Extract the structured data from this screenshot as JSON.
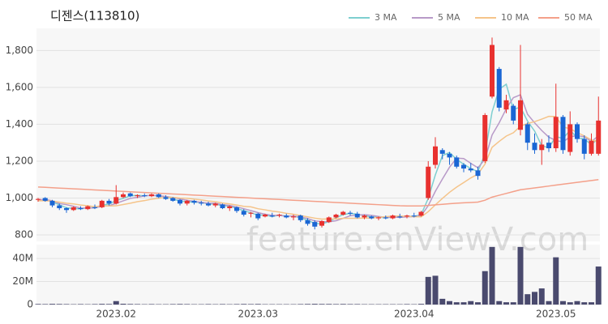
{
  "chart_data": [
    {
      "type": "candlestick",
      "title": "디젠스(113810)",
      "watermark": "feature.enViewV.com",
      "up_color": "#e8312f",
      "down_color": "#1a66d4",
      "categories": [
        null,
        null,
        null,
        null,
        null,
        null,
        null,
        null,
        null,
        null,
        null,
        "2023.02",
        null,
        null,
        null,
        null,
        null,
        null,
        null,
        null,
        null,
        null,
        null,
        null,
        null,
        null,
        null,
        null,
        null,
        null,
        null,
        "2023.03",
        null,
        null,
        null,
        null,
        null,
        null,
        null,
        null,
        null,
        null,
        null,
        null,
        null,
        null,
        null,
        null,
        null,
        null,
        null,
        null,
        null,
        "2023.04",
        null,
        null,
        null,
        null,
        null,
        null,
        null,
        null,
        null,
        null,
        null,
        null,
        null,
        null,
        null,
        null,
        null,
        null,
        null,
        "2023.05",
        null,
        null,
        null,
        null,
        null,
        null
      ],
      "open": [
        990,
        1000,
        985,
        960,
        945,
        935,
        945,
        940,
        950,
        950,
        985,
        970,
        1005,
        1025,
        1010,
        1015,
        1010,
        1020,
        1005,
        1000,
        990,
        970,
        985,
        975,
        970,
        960,
        965,
        945,
        950,
        930,
        915,
        915,
        900,
        905,
        905,
        905,
        895,
        905,
        880,
        870,
        850,
        870,
        895,
        910,
        920,
        915,
        895,
        900,
        890,
        895,
        890,
        900,
        900,
        905,
        905,
        1000,
        1180,
        1260,
        1240,
        1220,
        1180,
        1160,
        1150,
        1200,
        1550,
        1700,
        1480,
        1500,
        1370,
        1400,
        1300,
        1260,
        1300,
        1270,
        1440,
        1250,
        1400,
        1320,
        1240,
        1240
      ],
      "high": [
        1000,
        1005,
        990,
        970,
        950,
        955,
        955,
        960,
        965,
        990,
        995,
        1070,
        1030,
        1030,
        1020,
        1025,
        1025,
        1025,
        1015,
        1005,
        995,
        990,
        990,
        985,
        980,
        975,
        970,
        960,
        955,
        940,
        925,
        920,
        915,
        920,
        915,
        915,
        910,
        910,
        890,
        880,
        880,
        900,
        915,
        930,
        930,
        925,
        910,
        905,
        900,
        905,
        910,
        915,
        910,
        920,
        930,
        1200,
        1330,
        1270,
        1250,
        1230,
        1190,
        1190,
        1170,
        1460,
        1870,
        1710,
        1560,
        1510,
        1830,
        1410,
        1350,
        1320,
        1340,
        1620,
        1450,
        1470,
        1410,
        1340,
        1350,
        1550
      ],
      "low": [
        980,
        980,
        950,
        935,
        920,
        930,
        935,
        935,
        940,
        945,
        960,
        965,
        1000,
        1005,
        1000,
        1005,
        1005,
        1000,
        990,
        980,
        960,
        960,
        965,
        960,
        955,
        950,
        940,
        930,
        920,
        900,
        895,
        880,
        895,
        895,
        895,
        890,
        880,
        870,
        850,
        830,
        840,
        865,
        890,
        905,
        905,
        890,
        885,
        885,
        880,
        885,
        885,
        890,
        890,
        895,
        900,
        990,
        1160,
        1210,
        1180,
        1160,
        1140,
        1140,
        1100,
        1190,
        1540,
        1470,
        1460,
        1400,
        1340,
        1260,
        1240,
        1180,
        1250,
        1250,
        1240,
        1230,
        1300,
        1210,
        1230,
        1230
      ],
      "close": [
        995,
        985,
        960,
        945,
        935,
        950,
        940,
        955,
        945,
        985,
        970,
        1005,
        1020,
        1010,
        1015,
        1010,
        1020,
        1005,
        995,
        985,
        970,
        985,
        975,
        970,
        960,
        970,
        945,
        955,
        930,
        910,
        920,
        890,
        910,
        900,
        910,
        895,
        900,
        880,
        860,
        845,
        875,
        895,
        910,
        925,
        915,
        895,
        905,
        890,
        895,
        890,
        905,
        895,
        905,
        900,
        925,
        1170,
        1280,
        1240,
        1220,
        1170,
        1160,
        1150,
        1120,
        1450,
        1830,
        1490,
        1530,
        1420,
        1530,
        1300,
        1260,
        1290,
        1270,
        1440,
        1260,
        1400,
        1320,
        1240,
        1310,
        1420
      ],
      "series": [
        {
          "name": "3 MA",
          "color": "#7ecfd0",
          "values": [
            990,
            990,
            980,
            963,
            947,
            943,
            942,
            948,
            947,
            962,
            967,
            987,
            998,
            1012,
            1015,
            1012,
            1015,
            1012,
            1007,
            995,
            983,
            980,
            977,
            977,
            968,
            967,
            958,
            957,
            943,
            932,
            920,
            907,
            907,
            900,
            907,
            902,
            902,
            892,
            880,
            862,
            860,
            872,
            893,
            910,
            917,
            912,
            905,
            897,
            897,
            892,
            897,
            897,
            902,
            900,
            910,
            998,
            1125,
            1230,
            1247,
            1210,
            1183,
            1160,
            1143,
            1240,
            1467,
            1590,
            1617,
            1480,
            1493,
            1417,
            1363,
            1283,
            1273,
            1333,
            1323,
            1367,
            1327,
            1320,
            1290,
            1323
          ]
        },
        {
          "name": "5 MA",
          "color": "#b89ac8",
          "values": [
            990,
            992,
            985,
            970,
            964,
            955,
            946,
            945,
            947,
            955,
            959,
            971,
            985,
            998,
            1004,
            1012,
            1015,
            1012,
            1009,
            1003,
            995,
            988,
            982,
            977,
            972,
            972,
            964,
            960,
            952,
            942,
            932,
            921,
            912,
            906,
            906,
            901,
            903,
            897,
            889,
            876,
            872,
            871,
            877,
            890,
            904,
            908,
            910,
            906,
            900,
            895,
            897,
            895,
            898,
            899,
            904,
            959,
            1036,
            1103,
            1167,
            1216,
            1214,
            1188,
            1164,
            1210,
            1342,
            1408,
            1484,
            1544,
            1560,
            1454,
            1408,
            1366,
            1330,
            1312,
            1304,
            1332,
            1338,
            1332,
            1306,
            1338
          ]
        },
        {
          "name": "10 MA",
          "color": "#f5c48a",
          "values": [
            985,
            985,
            983,
            978,
            972,
            968,
            962,
            958,
            953,
            958,
            957,
            958,
            965,
            972,
            980,
            986,
            994,
            999,
            1004,
            1004,
            1000,
            999,
            994,
            990,
            984,
            980,
            973,
            968,
            962,
            955,
            952,
            942,
            936,
            929,
            924,
            917,
            912,
            905,
            898,
            891,
            886,
            887,
            887,
            890,
            890,
            890,
            891,
            892,
            895,
            899,
            902,
            902,
            901,
            899,
            898,
            926,
            963,
            998,
            1031,
            1059,
            1084,
            1109,
            1130,
            1184,
            1275,
            1307,
            1336,
            1354,
            1390,
            1404,
            1414,
            1428,
            1443,
            1442,
            1385,
            1376,
            1355,
            1337,
            1315,
            1304
          ]
        },
        {
          "name": "50 MA",
          "color": "#f4a08a",
          "values": [
            1060,
            1058,
            1056,
            1054,
            1052,
            1050,
            1048,
            1046,
            1044,
            1042,
            1040,
            1038,
            1036,
            1034,
            1032,
            1030,
            1028,
            1026,
            1024,
            1022,
            1020,
            1018,
            1016,
            1014,
            1012,
            1010,
            1008,
            1006,
            1004,
            1002,
            1000,
            998,
            996,
            994,
            992,
            990,
            988,
            986,
            984,
            982,
            980,
            978,
            976,
            974,
            972,
            970,
            968,
            966,
            964,
            962,
            960,
            958,
            957,
            957,
            957,
            960,
            963,
            966,
            969,
            972,
            974,
            976,
            978,
            988,
            1005,
            1015,
            1025,
            1035,
            1045,
            1050,
            1055,
            1060,
            1065,
            1070,
            1075,
            1080,
            1085,
            1090,
            1095,
            1100
          ]
        }
      ],
      "ylim": [
        765,
        1920
      ],
      "yticks": [
        800,
        {
          "value": 1000,
          "label": "1,000"
        },
        {
          "value": 1200,
          "label": "1,200"
        },
        {
          "value": 1400,
          "label": "1,400"
        },
        {
          "value": 1600,
          "label": "1,600"
        },
        {
          "value": 1800,
          "label": "1,800"
        }
      ],
      "grid": true
    },
    {
      "type": "bar",
      "color": "#4a4a6e",
      "values": [
        500000,
        400000,
        600000,
        500000,
        400000,
        300000,
        400000,
        300000,
        400000,
        600000,
        500000,
        3000000,
        700000,
        500000,
        400000,
        300000,
        400000,
        300000,
        300000,
        400000,
        500000,
        400000,
        300000,
        300000,
        400000,
        300000,
        400000,
        300000,
        400000,
        500000,
        400000,
        500000,
        300000,
        300000,
        300000,
        300000,
        300000,
        400000,
        500000,
        600000,
        500000,
        500000,
        400000,
        500000,
        400000,
        400000,
        300000,
        300000,
        300000,
        300000,
        300000,
        300000,
        400000,
        300000,
        600000,
        24000000,
        25000000,
        5000000,
        3000000,
        2000000,
        2000000,
        3000000,
        2000000,
        29000000,
        50000000,
        3000000,
        2000000,
        2000000,
        50000000,
        9000000,
        11000000,
        14000000,
        3000000,
        41000000,
        3000000,
        2000000,
        3000000,
        2000000,
        2000000,
        33000000
      ],
      "ylim": [
        0,
        52000000
      ],
      "yticks": [
        0,
        {
          "value": 20000000,
          "label": "20M"
        },
        {
          "value": 40000000,
          "label": "40M"
        }
      ],
      "grid": true
    }
  ]
}
